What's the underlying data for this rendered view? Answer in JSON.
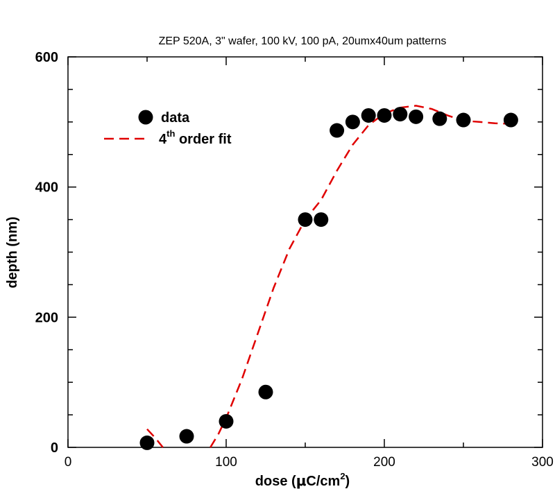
{
  "chart_data": {
    "type": "scatter",
    "title": "ZEP 520A, 3\" wafer, 100 kV, 100 pA, 20umx40um patterns",
    "xlabel": {
      "prefix": "dose (",
      "mu": "μ",
      "unit": "C/cm",
      "sup": "2",
      "suffix": ")"
    },
    "ylabel": "depth (nm)",
    "xlim": [
      0,
      300
    ],
    "ylim": [
      0,
      600
    ],
    "x_ticks": [
      "0",
      "100",
      "200",
      "300"
    ],
    "y_ticks": [
      "0",
      "200",
      "400",
      "600"
    ],
    "legend": {
      "data_label": "data",
      "fit_label_main": "4",
      "fit_label_sup": "th",
      "fit_label_rest": " order fit"
    },
    "series": [
      {
        "name": "data",
        "kind": "points",
        "color": "#000000",
        "points": [
          [
            50,
            7
          ],
          [
            75,
            17
          ],
          [
            100,
            40
          ],
          [
            125,
            85
          ],
          [
            150,
            350
          ],
          [
            160,
            350
          ],
          [
            170,
            487
          ],
          [
            180,
            500
          ],
          [
            190,
            510
          ],
          [
            200,
            510
          ],
          [
            210,
            512
          ],
          [
            220,
            508
          ],
          [
            235,
            505
          ],
          [
            250,
            503
          ],
          [
            280,
            503
          ]
        ]
      },
      {
        "name": "4th order fit",
        "kind": "dashed-line",
        "color": "#e00000",
        "points": [
          [
            50,
            28
          ],
          [
            55,
            15
          ],
          [
            60,
            0
          ],
          [
            90,
            0
          ],
          [
            95,
            20
          ],
          [
            100,
            45
          ],
          [
            110,
            105
          ],
          [
            120,
            175
          ],
          [
            130,
            245
          ],
          [
            140,
            305
          ],
          [
            150,
            350
          ],
          [
            160,
            380
          ],
          [
            170,
            425
          ],
          [
            180,
            465
          ],
          [
            190,
            495
          ],
          [
            200,
            513
          ],
          [
            210,
            522
          ],
          [
            220,
            525
          ],
          [
            230,
            520
          ],
          [
            240,
            510
          ],
          [
            250,
            502
          ],
          [
            260,
            500
          ],
          [
            270,
            498
          ],
          [
            280,
            497
          ]
        ]
      }
    ]
  }
}
